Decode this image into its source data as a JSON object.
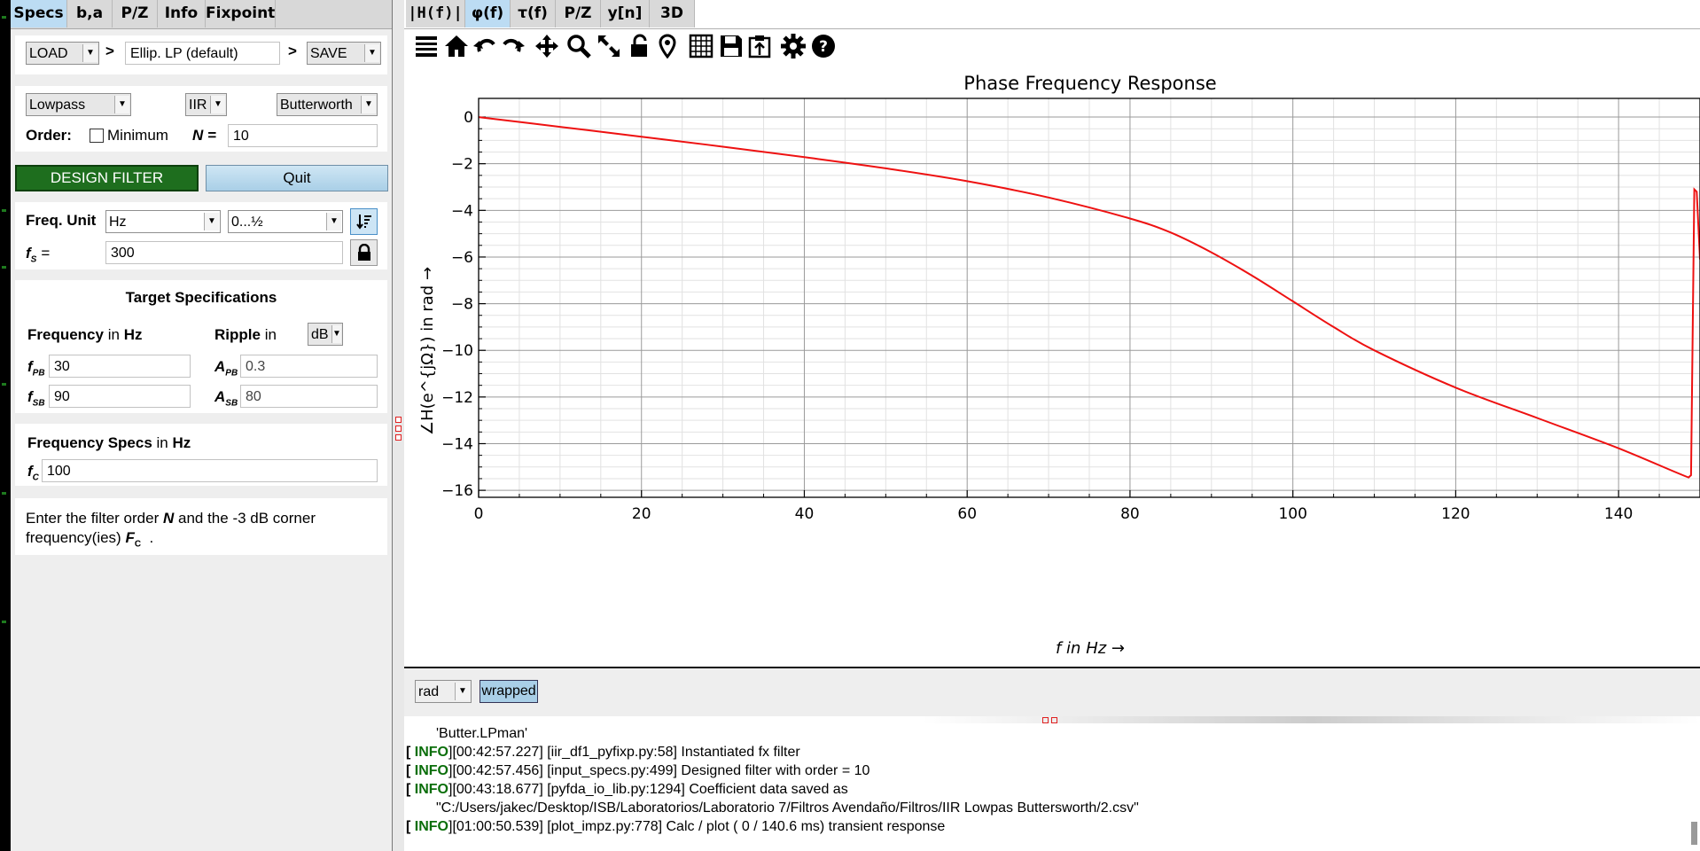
{
  "left_tabs": [
    "Specs",
    "b,a",
    "P/Z",
    "Info",
    "Fixpoint"
  ],
  "right_tabs": [
    "|H(f)|",
    "φ(f)",
    "τ(f)",
    "P/Z",
    "y[n]",
    "3D"
  ],
  "load_save": {
    "load": "LOAD",
    "arrow": ">",
    "filter_name": "Ellip. LP (default)",
    "save": "SAVE"
  },
  "filter_type": {
    "response": "Lowpass",
    "kind": "IIR",
    "design": "Butterworth",
    "order_label": "Order:",
    "minimum_label": "Minimum",
    "minimum_checked": false,
    "n_label": "N =",
    "n_value": "10"
  },
  "buttons": {
    "design": "DESIGN FILTER",
    "quit": "Quit"
  },
  "freq_unit": {
    "label": "Freq. Unit",
    "unit": "Hz",
    "range": "0...½",
    "fs_label": "f",
    "fs_sub": "S",
    "fs_eq": "=",
    "fs_value": "300"
  },
  "target_specs": {
    "title": "Target Specifications",
    "freq_label": "Frequency",
    "freq_in": "in",
    "freq_unit": "Hz",
    "ripple_label": "Ripple",
    "ripple_in": "in",
    "ripple_unit": "dB",
    "f_pb_label": "f",
    "f_pb_sub": "PB",
    "f_pb_value": "30",
    "f_sb_label": "f",
    "f_sb_sub": "SB",
    "f_sb_value": "90",
    "a_pb_label": "A",
    "a_pb_sub": "PB",
    "a_pb_value": "0.3",
    "a_sb_label": "A",
    "a_sb_sub": "SB",
    "a_sb_value": "80"
  },
  "freq_specs": {
    "title": "Frequency Specs",
    "in": "in",
    "unit": "Hz",
    "fc_label": "f",
    "fc_sub": "C",
    "fc_value": "100"
  },
  "help_text": {
    "line1_a": "Enter the filter order",
    "line1_n": "N",
    "line1_b": "and the -3 dB corner",
    "line2_a": "frequency(ies)",
    "line2_f": "F",
    "line2_sub": "C",
    "line2_b": "."
  },
  "toolbar_icons": [
    "list-icon",
    "home-icon",
    "undo-icon",
    "redo-icon",
    "pan-icon",
    "zoom-icon",
    "fullscreen-icon",
    "lock-icon",
    "marker-icon",
    "grid-icon",
    "save-icon",
    "clipboard-icon",
    "settings-icon",
    "help-icon"
  ],
  "plot_controls": {
    "unit": "rad",
    "wrapped": "wrapped"
  },
  "log": [
    {
      "prefix": "",
      "tag": "",
      "text": "'Butter.LPman'",
      "indent": true
    },
    {
      "prefix": "[",
      "tag": " INFO",
      "text": "][00:42:57.227] [iir_df1_pyfixp.py:58] Instantiated fx filter",
      "indent": false
    },
    {
      "prefix": "[",
      "tag": " INFO",
      "text": "][00:42:57.456] [input_specs.py:499] Designed filter with order = 10",
      "indent": false
    },
    {
      "prefix": "[",
      "tag": " INFO",
      "text": "][00:43:18.677] [pyfda_io_lib.py:1294] Coefficient data saved as",
      "indent": false
    },
    {
      "prefix": "",
      "tag": "",
      "text": "\"C:/Users/jakec/Desktop/ISB/Laboratorios/Laboratorio 7/Filtros Avendaño/Filtros/IIR Lowpas Buttersworth/2.csv\"",
      "indent": true
    },
    {
      "prefix": "[",
      "tag": " INFO",
      "text": "][01:00:50.539] [plot_impz.py:778] Calc / plot ( 0 / 140.6 ms) transient response",
      "indent": false
    }
  ],
  "colors": {
    "curve": "#ee1111",
    "design_button": "#1a6f1a",
    "active_tab": "#bcdcf3",
    "log_tag": "#0a6e0a"
  },
  "chart_data": {
    "type": "line",
    "title": "Phase Frequency Response",
    "xlabel": "f in Hz →",
    "ylabel": "∠H(e^{jΩ}) in rad →",
    "xlim": [
      0,
      150
    ],
    "ylim": [
      -16.3,
      0.8
    ],
    "xticks": [
      0,
      20,
      40,
      60,
      80,
      100,
      120,
      140
    ],
    "yticks": [
      0,
      -2,
      -4,
      -6,
      -8,
      -10,
      -12,
      -14,
      -16
    ],
    "grid": true,
    "series": [
      {
        "x": [
          0,
          10,
          20,
          30,
          40,
          50,
          60,
          70,
          80,
          85,
          90,
          95,
          100,
          105,
          110,
          120,
          130,
          140,
          148.6,
          148.9,
          149.3,
          149.6,
          150
        ],
        "y": [
          0,
          -0.42,
          -0.84,
          -1.27,
          -1.72,
          -2.2,
          -2.75,
          -3.45,
          -4.35,
          -4.95,
          -5.8,
          -6.8,
          -7.9,
          -9.0,
          -10.0,
          -11.6,
          -12.9,
          -14.2,
          -15.45,
          -15.35,
          -3.1,
          -3.2,
          -6.1
        ]
      }
    ]
  }
}
